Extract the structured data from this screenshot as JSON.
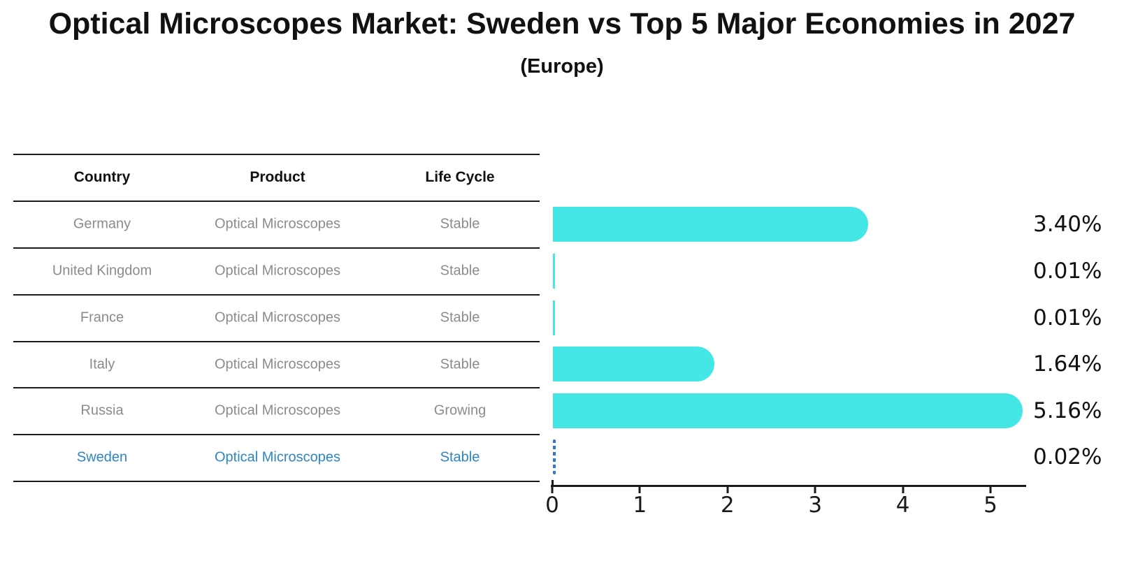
{
  "title": "Optical Microscopes Market: Sweden vs Top 5 Major Economies in 2027",
  "subtitle": "(Europe)",
  "table": {
    "headers": [
      "Country",
      "Product",
      "Life Cycle"
    ],
    "rows": [
      {
        "country": "Germany",
        "product": "Optical Microscopes",
        "life_cycle": "Stable",
        "value_label": "3.40%",
        "highlight": false
      },
      {
        "country": "United Kingdom",
        "product": "Optical Microscopes",
        "life_cycle": "Stable",
        "value_label": "0.01%",
        "highlight": false
      },
      {
        "country": "France",
        "product": "Optical Microscopes",
        "life_cycle": "Stable",
        "value_label": "0.01%",
        "highlight": false
      },
      {
        "country": "Italy",
        "product": "Optical Microscopes",
        "life_cycle": "Stable",
        "value_label": "1.64%",
        "highlight": false
      },
      {
        "country": "Russia",
        "product": "Optical Microscopes",
        "life_cycle": "Growing",
        "value_label": "5.16%",
        "highlight": false
      },
      {
        "country": "Sweden",
        "product": "Optical Microscopes",
        "life_cycle": "Stable",
        "value_label": "0.02%",
        "highlight": true
      }
    ]
  },
  "chart_data": {
    "type": "bar",
    "orientation": "horizontal",
    "title": "Optical Microscopes Market: Sweden vs Top 5 Major Economies in 2027",
    "subtitle": "(Europe)",
    "categories": [
      "Germany",
      "United Kingdom",
      "France",
      "Italy",
      "Russia",
      "Sweden"
    ],
    "values": [
      3.4,
      0.01,
      0.01,
      1.64,
      5.16,
      0.02
    ],
    "value_labels": [
      "3.40%",
      "0.01%",
      "0.01%",
      "1.64%",
      "5.16%",
      "0.02%"
    ],
    "unit": "percent",
    "xticks": [
      0,
      1,
      2,
      3,
      4,
      5
    ],
    "xlim": [
      0,
      5.4
    ],
    "grid": false,
    "legend": "none",
    "bar_color": "#45e6e6",
    "highlight_color": "#2e86c1",
    "highlight_category": "Sweden",
    "highlight_bar_style": "dashed"
  }
}
